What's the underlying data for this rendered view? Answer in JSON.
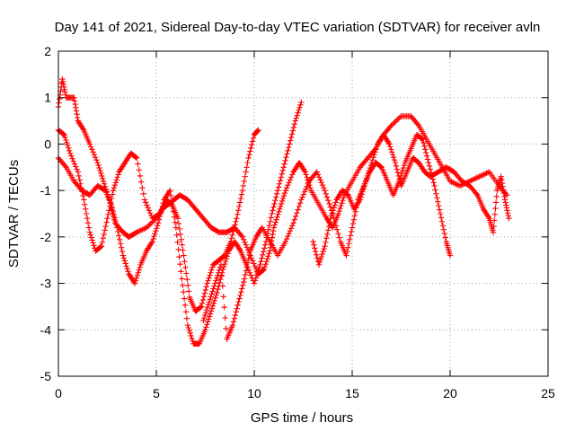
{
  "chart_data": {
    "type": "scatter",
    "title": "Day 141 of 2021, Sidereal Day-to-day VTEC variation (SDTVAR) for receiver avln",
    "xlabel": "GPS time / hours",
    "ylabel": "SDTVAR / TECUs",
    "xlim": [
      0,
      25
    ],
    "ylim": [
      -5,
      2
    ],
    "xticks": [
      0,
      5,
      10,
      15,
      20,
      25
    ],
    "yticks": [
      -5,
      -4,
      -3,
      -2,
      -1,
      0,
      1,
      2
    ],
    "xtick_labels": [
      "0",
      "5",
      "10",
      "15",
      "20",
      "25"
    ],
    "ytick_labels": [
      "-5",
      "-4",
      "-3",
      "-2",
      "-1",
      "0",
      "1",
      "2"
    ],
    "grid": true,
    "marker": "+",
    "color": "#ff0000",
    "series": [
      {
        "name": "track-1",
        "points": [
          [
            0.0,
            0.8
          ],
          [
            0.2,
            1.4
          ],
          [
            0.4,
            1.0
          ],
          [
            0.8,
            1.0
          ],
          [
            1.0,
            0.5
          ],
          [
            1.3,
            0.3
          ],
          [
            1.6,
            0.0
          ],
          [
            2.0,
            -0.4
          ],
          [
            2.3,
            -0.8
          ],
          [
            2.6,
            -1.2
          ],
          [
            2.9,
            -1.7
          ],
          [
            3.3,
            -1.9
          ],
          [
            3.6,
            -2.0
          ],
          [
            4.0,
            -1.9
          ],
          [
            4.5,
            -1.8
          ],
          [
            5.0,
            -1.6
          ],
          [
            5.3,
            -1.4
          ],
          [
            5.6,
            -1.3
          ],
          [
            5.9,
            -1.2
          ],
          [
            6.2,
            -1.1
          ],
          [
            6.6,
            -1.2
          ],
          [
            7.0,
            -1.4
          ],
          [
            7.4,
            -1.6
          ],
          [
            7.8,
            -1.8
          ],
          [
            8.2,
            -1.9
          ],
          [
            8.6,
            -1.9
          ],
          [
            9.0,
            -1.8
          ],
          [
            9.4,
            -2.0
          ],
          [
            9.8,
            -2.4
          ],
          [
            10.2,
            -2.8
          ],
          [
            10.5,
            -2.7
          ],
          [
            10.8,
            -2.3
          ],
          [
            11.0,
            -1.8
          ],
          [
            11.3,
            -1.4
          ],
          [
            11.6,
            -1.0
          ],
          [
            12.0,
            -0.6
          ],
          [
            12.3,
            -0.4
          ],
          [
            12.6,
            -0.6
          ],
          [
            12.9,
            -1.0
          ],
          [
            13.3,
            -1.3
          ],
          [
            13.7,
            -1.6
          ],
          [
            14.0,
            -1.8
          ],
          [
            14.3,
            -1.5
          ],
          [
            14.6,
            -1.1
          ],
          [
            15.0,
            -0.8
          ],
          [
            15.4,
            -0.5
          ],
          [
            15.8,
            -0.3
          ],
          [
            16.2,
            -0.1
          ],
          [
            16.6,
            0.2
          ],
          [
            17.0,
            0.4
          ],
          [
            17.5,
            0.6
          ],
          [
            18.0,
            0.6
          ],
          [
            18.4,
            0.4
          ],
          [
            18.8,
            0.1
          ],
          [
            19.2,
            -0.2
          ],
          [
            19.6,
            -0.5
          ],
          [
            20.0,
            -0.8
          ],
          [
            20.5,
            -0.9
          ],
          [
            21.0,
            -0.8
          ],
          [
            21.5,
            -0.7
          ],
          [
            22.0,
            -0.6
          ],
          [
            22.5,
            -0.9
          ],
          [
            22.9,
            -1.1
          ]
        ]
      },
      {
        "name": "track-2",
        "points": [
          [
            0.0,
            0.3
          ],
          [
            0.3,
            0.2
          ],
          [
            0.6,
            -0.2
          ],
          [
            1.0,
            -0.6
          ],
          [
            1.3,
            -1.2
          ],
          [
            1.6,
            -1.9
          ],
          [
            1.9,
            -2.3
          ],
          [
            2.2,
            -2.2
          ],
          [
            2.5,
            -1.6
          ],
          [
            2.8,
            -1.0
          ],
          [
            3.1,
            -0.6
          ],
          [
            3.4,
            -0.4
          ],
          [
            3.7,
            -0.2
          ],
          [
            4.0,
            -0.3
          ],
          [
            4.4,
            -1.2
          ],
          [
            4.8,
            -1.6
          ],
          [
            5.2,
            -1.5
          ],
          [
            5.5,
            -1.2
          ],
          [
            5.8,
            -1.3
          ],
          [
            6.1,
            -1.6
          ],
          [
            6.4,
            -2.4
          ],
          [
            6.7,
            -3.3
          ],
          [
            7.0,
            -3.6
          ],
          [
            7.3,
            -3.5
          ],
          [
            7.6,
            -3.0
          ],
          [
            7.9,
            -2.6
          ],
          [
            8.2,
            -2.5
          ],
          [
            8.5,
            -2.4
          ],
          [
            8.8,
            -2.1
          ],
          [
            9.1,
            -1.6
          ],
          [
            9.4,
            -1.0
          ],
          [
            9.7,
            -0.3
          ],
          [
            10.0,
            0.2
          ],
          [
            10.2,
            0.3
          ]
        ]
      },
      {
        "name": "track-3",
        "points": [
          [
            0.0,
            -0.3
          ],
          [
            0.4,
            -0.5
          ],
          [
            0.8,
            -0.8
          ],
          [
            1.2,
            -1.0
          ],
          [
            1.6,
            -1.1
          ],
          [
            2.0,
            -0.9
          ],
          [
            2.4,
            -1.0
          ],
          [
            2.7,
            -1.3
          ],
          [
            3.0,
            -1.8
          ],
          [
            3.3,
            -2.4
          ],
          [
            3.6,
            -2.8
          ],
          [
            3.9,
            -3.0
          ],
          [
            4.2,
            -2.6
          ],
          [
            4.5,
            -2.3
          ],
          [
            4.8,
            -2.1
          ],
          [
            5.1,
            -1.7
          ],
          [
            5.4,
            -1.2
          ],
          [
            5.7,
            -1.0
          ],
          [
            6.0,
            -1.8
          ],
          [
            6.3,
            -2.9
          ],
          [
            6.6,
            -3.9
          ],
          [
            6.9,
            -4.3
          ],
          [
            7.2,
            -4.3
          ],
          [
            7.5,
            -4.0
          ],
          [
            7.8,
            -3.6
          ],
          [
            8.1,
            -3.2
          ],
          [
            8.4,
            -2.7
          ],
          [
            8.7,
            -2.3
          ],
          [
            9.0,
            -2.1
          ],
          [
            9.3,
            -2.3
          ],
          [
            9.6,
            -2.6
          ],
          [
            10.0,
            -3.0
          ],
          [
            10.3,
            -2.6
          ],
          [
            10.6,
            -2.1
          ],
          [
            10.9,
            -1.5
          ],
          [
            11.2,
            -1.0
          ],
          [
            11.5,
            -0.5
          ],
          [
            11.8,
            0.0
          ],
          [
            12.1,
            0.5
          ],
          [
            12.4,
            0.9
          ]
        ]
      },
      {
        "name": "track-4",
        "points": [
          [
            7.4,
            -3.8
          ],
          [
            7.7,
            -3.4
          ],
          [
            8.0,
            -3.0
          ],
          [
            8.3,
            -2.6
          ],
          [
            8.6,
            -4.2
          ],
          [
            8.9,
            -3.9
          ],
          [
            9.2,
            -3.4
          ],
          [
            9.5,
            -2.9
          ],
          [
            9.8,
            -2.3
          ],
          [
            10.1,
            -2.0
          ],
          [
            10.4,
            -1.8
          ],
          [
            10.8,
            -2.1
          ],
          [
            11.2,
            -2.4
          ],
          [
            11.6,
            -2.1
          ],
          [
            12.0,
            -1.7
          ],
          [
            12.4,
            -1.2
          ],
          [
            12.8,
            -0.8
          ],
          [
            13.2,
            -0.6
          ],
          [
            13.6,
            -1.0
          ],
          [
            14.0,
            -1.5
          ],
          [
            14.4,
            -2.1
          ],
          [
            14.7,
            -2.4
          ],
          [
            15.0,
            -1.8
          ],
          [
            15.3,
            -1.2
          ],
          [
            15.6,
            -0.9
          ],
          [
            15.9,
            -0.6
          ],
          [
            16.2,
            -0.4
          ],
          [
            16.5,
            -0.5
          ],
          [
            16.8,
            -0.8
          ],
          [
            17.1,
            -1.1
          ],
          [
            17.4,
            -0.8
          ],
          [
            17.7,
            -0.4
          ],
          [
            18.0,
            -0.1
          ],
          [
            18.3,
            0.2
          ],
          [
            18.6,
            0.1
          ],
          [
            18.9,
            -0.4
          ],
          [
            19.2,
            -0.9
          ],
          [
            19.5,
            -1.5
          ],
          [
            19.8,
            -2.1
          ],
          [
            20.0,
            -2.4
          ]
        ]
      },
      {
        "name": "track-5",
        "points": [
          [
            13.0,
            -2.1
          ],
          [
            13.3,
            -2.6
          ],
          [
            13.6,
            -2.2
          ],
          [
            13.9,
            -1.6
          ],
          [
            14.2,
            -1.2
          ],
          [
            14.5,
            -1.0
          ],
          [
            14.8,
            -1.1
          ],
          [
            15.1,
            -1.4
          ],
          [
            15.4,
            -1.2
          ],
          [
            15.7,
            -0.8
          ],
          [
            16.0,
            -0.4
          ],
          [
            16.3,
            0.0
          ],
          [
            16.6,
            0.2
          ],
          [
            16.9,
            0.0
          ],
          [
            17.2,
            -0.4
          ],
          [
            17.5,
            -0.9
          ],
          [
            17.8,
            -0.6
          ],
          [
            18.1,
            -0.3
          ],
          [
            18.4,
            -0.4
          ],
          [
            18.7,
            -0.6
          ],
          [
            19.0,
            -0.7
          ],
          [
            19.4,
            -0.6
          ],
          [
            19.8,
            -0.5
          ],
          [
            20.2,
            -0.6
          ],
          [
            20.6,
            -0.8
          ],
          [
            21.0,
            -0.9
          ],
          [
            21.4,
            -1.1
          ],
          [
            21.7,
            -1.4
          ],
          [
            22.0,
            -1.6
          ],
          [
            22.2,
            -1.9
          ],
          [
            22.4,
            -1.0
          ],
          [
            22.6,
            -0.7
          ],
          [
            22.8,
            -1.2
          ],
          [
            23.0,
            -1.6
          ]
        ]
      }
    ]
  }
}
